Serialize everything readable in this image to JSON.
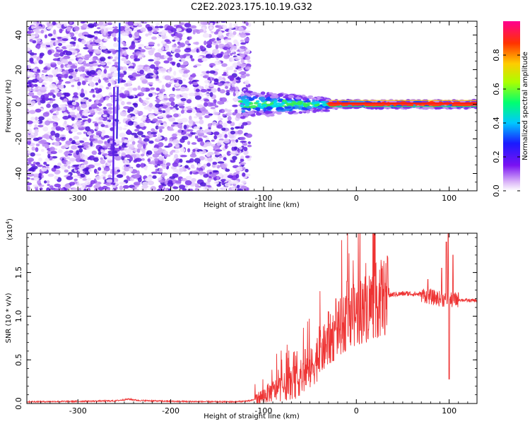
{
  "title": "C2E2.2023.175.10.19.G32",
  "colors": {
    "frame": "#000000",
    "snr_line": "#ee3333",
    "spectrum_speckle": "#6a2ee8",
    "spectrum_core": "#e11111"
  },
  "chart_data": [
    {
      "type": "heatmap",
      "name": "spectrogram",
      "xlabel": "Height of straight line (km)",
      "ylabel": "Frequency (Hz)",
      "xlim": [
        -355,
        130
      ],
      "ylim": [
        -50,
        48
      ],
      "xticks": [
        -300,
        -200,
        -100,
        0,
        100
      ],
      "yticks": [
        -40,
        -20,
        0,
        20,
        40
      ],
      "xtick_labels": [
        "-300",
        "-200",
        "-100",
        "0",
        "100"
      ],
      "ytick_labels": [
        "-40",
        "-20",
        "0",
        "20",
        "40"
      ],
      "noise_region_x": [
        -355,
        -125
      ],
      "signal_start_x": -125,
      "signal_center_freq": 0,
      "colorbar": {
        "label": "Normalized spectral amplitude",
        "range": [
          0.0,
          1.0
        ],
        "ticks": [
          0.0,
          0.2,
          0.4,
          0.6,
          0.8
        ],
        "tick_labels": [
          "0.0",
          "0.2",
          "0.4",
          "0.6",
          "0.8"
        ]
      }
    },
    {
      "type": "line",
      "name": "snr",
      "xlabel": "Height of straight line (km)",
      "ylabel": "SNR (10 * v/v)",
      "multiplier_label": "(x10",
      "multiplier_exp": "4",
      "multiplier_close": ")",
      "xlim": [
        -355,
        130
      ],
      "ylim": [
        0,
        1.95
      ],
      "xticks": [
        -300,
        -200,
        -100,
        0,
        100
      ],
      "yticks": [
        0.0,
        0.5,
        1.0,
        1.5
      ],
      "xtick_labels": [
        "-300",
        "-200",
        "-100",
        "0",
        "100"
      ],
      "ytick_labels": [
        "0.0",
        "0.5",
        "1.0",
        "1.5"
      ],
      "profile": [
        [
          -355,
          0.02
        ],
        [
          -300,
          0.025
        ],
        [
          -260,
          0.03
        ],
        [
          -245,
          0.05
        ],
        [
          -235,
          0.035
        ],
        [
          -200,
          0.025
        ],
        [
          -150,
          0.02
        ],
        [
          -130,
          0.02
        ],
        [
          -115,
          0.03
        ],
        [
          -105,
          0.06
        ],
        [
          -95,
          0.12
        ],
        [
          -80,
          0.18
        ],
        [
          -65,
          0.25
        ],
        [
          -50,
          0.38
        ],
        [
          -40,
          0.55
        ],
        [
          -30,
          0.7
        ],
        [
          -20,
          0.85
        ],
        [
          -10,
          0.95
        ],
        [
          0,
          1.02
        ],
        [
          10,
          1.1
        ],
        [
          20,
          1.17
        ],
        [
          30,
          1.22
        ],
        [
          40,
          1.25
        ],
        [
          55,
          1.26
        ],
        [
          70,
          1.25
        ],
        [
          80,
          1.22
        ],
        [
          90,
          1.2
        ],
        [
          100,
          1.18
        ],
        [
          110,
          1.19
        ],
        [
          120,
          1.18
        ],
        [
          130,
          1.18
        ]
      ],
      "spikes": [
        [
          -55,
          0.62
        ],
        [
          -40,
          0.88
        ],
        [
          -30,
          1.05
        ],
        [
          -22,
          1.2
        ],
        [
          -10,
          1.4
        ],
        [
          -5,
          1.32
        ],
        [
          35,
          1.32
        ],
        [
          77,
          1.42
        ],
        [
          92,
          1.55
        ],
        [
          97,
          1.85
        ],
        [
          99,
          1.95
        ],
        [
          100,
          0.28
        ],
        [
          104,
          1.7
        ]
      ]
    }
  ]
}
